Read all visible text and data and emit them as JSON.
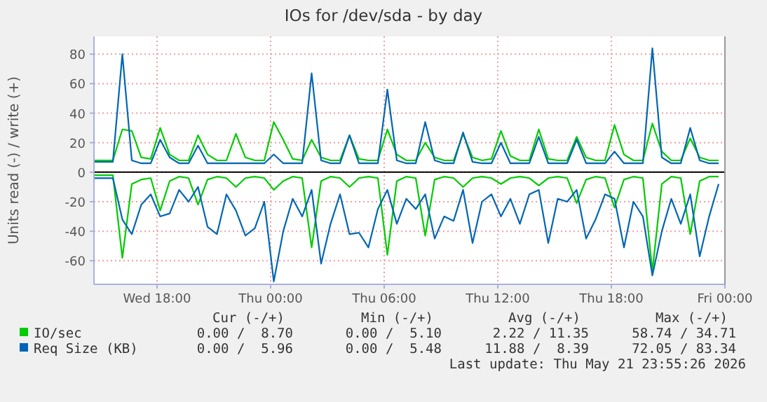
{
  "chart_data": {
    "type": "line",
    "title": "IOs for /dev/sda - by day",
    "ylabel": "Units read (-) / write (+)",
    "x": [
      "2026-05-20T14:40",
      "2026-05-20T15:10",
      "2026-05-20T15:40",
      "2026-05-20T16:10",
      "2026-05-20T16:40",
      "2026-05-20T17:10",
      "2026-05-20T17:40",
      "2026-05-20T18:10",
      "2026-05-20T18:40",
      "2026-05-20T19:10",
      "2026-05-20T19:40",
      "2026-05-20T20:10",
      "2026-05-20T20:40",
      "2026-05-20T21:10",
      "2026-05-20T21:40",
      "2026-05-20T22:10",
      "2026-05-20T22:40",
      "2026-05-20T23:10",
      "2026-05-20T23:40",
      "2026-05-21T00:10",
      "2026-05-21T00:40",
      "2026-05-21T01:10",
      "2026-05-21T01:40",
      "2026-05-21T02:10",
      "2026-05-21T02:40",
      "2026-05-21T03:10",
      "2026-05-21T03:40",
      "2026-05-21T04:10",
      "2026-05-21T04:40",
      "2026-05-21T05:10",
      "2026-05-21T05:40",
      "2026-05-21T06:10",
      "2026-05-21T06:40",
      "2026-05-21T07:10",
      "2026-05-21T07:40",
      "2026-05-21T08:10",
      "2026-05-21T08:40",
      "2026-05-21T09:10",
      "2026-05-21T09:40",
      "2026-05-21T10:10",
      "2026-05-21T10:40",
      "2026-05-21T11:10",
      "2026-05-21T11:40",
      "2026-05-21T12:10",
      "2026-05-21T12:40",
      "2026-05-21T13:10",
      "2026-05-21T13:40",
      "2026-05-21T14:10",
      "2026-05-21T14:40",
      "2026-05-21T15:10",
      "2026-05-21T15:40",
      "2026-05-21T16:10",
      "2026-05-21T16:40",
      "2026-05-21T17:10",
      "2026-05-21T17:40",
      "2026-05-21T18:10",
      "2026-05-21T18:40",
      "2026-05-21T19:10",
      "2026-05-21T19:40",
      "2026-05-21T20:10",
      "2026-05-21T20:40",
      "2026-05-21T21:10",
      "2026-05-21T21:40",
      "2026-05-21T22:10",
      "2026-05-21T22:40",
      "2026-05-21T23:10",
      "2026-05-21T23:40"
    ],
    "series": [
      {
        "color": "#00cc00",
        "values": [
          -2,
          -2,
          -2,
          -58,
          -8,
          -5,
          -4,
          -26,
          -6,
          -3,
          -4,
          -22,
          -5,
          -3,
          -4,
          -10,
          -4,
          -3,
          -4,
          -12,
          -6,
          -3,
          -4,
          -51,
          -6,
          -3,
          -4,
          -10,
          -4,
          -3,
          -4,
          -56,
          -6,
          -3,
          -4,
          -43,
          -5,
          -3,
          -4,
          -10,
          -4,
          -3,
          -4,
          -8,
          -4,
          -3,
          -4,
          -9,
          -4,
          -3,
          -4,
          -21,
          -5,
          -3,
          -4,
          -24,
          -5,
          -3,
          -4,
          -67,
          -8,
          -3,
          -4,
          -42,
          -6,
          -3,
          -3
        ]
      },
      {
        "color": "#0066b3",
        "values": [
          -4,
          -4,
          -4,
          -32,
          -42,
          -22,
          -15,
          -30,
          -28,
          -12,
          -20,
          -10,
          -37,
          -42,
          -15,
          -26,
          -43,
          -38,
          -20,
          -74,
          -40,
          -18,
          -30,
          -12,
          -62,
          -35,
          -15,
          -42,
          -41,
          -51,
          -25,
          -12,
          -35,
          -18,
          -25,
          -15,
          -45,
          -30,
          -33,
          -12,
          -48,
          -20,
          -15,
          -30,
          -18,
          -35,
          -15,
          -12,
          -48,
          -18,
          -20,
          -12,
          -45,
          -32,
          -15,
          -18,
          -51,
          -20,
          -30,
          -70,
          -40,
          -18,
          -35,
          -15,
          -57,
          -30,
          -8
        ]
      },
      {
        "name": "IO/sec",
        "color": "#00cc00",
        "values": [
          8,
          8,
          8,
          29,
          28,
          10,
          9,
          30,
          12,
          8,
          8,
          25,
          12,
          8,
          8,
          26,
          10,
          8,
          8,
          34,
          22,
          9,
          8,
          22,
          10,
          8,
          8,
          25,
          9,
          8,
          8,
          29,
          12,
          8,
          8,
          20,
          10,
          8,
          8,
          26,
          10,
          8,
          9,
          28,
          11,
          8,
          8,
          29,
          9,
          8,
          8,
          24,
          10,
          8,
          8,
          32,
          12,
          8,
          8,
          33,
          14,
          8,
          8,
          23,
          10,
          8,
          8
        ]
      },
      {
        "name": "Req Size (KB)",
        "color": "#0066b3",
        "values": [
          7,
          7,
          7,
          80,
          8,
          6,
          6,
          22,
          10,
          6,
          6,
          18,
          6,
          6,
          6,
          6,
          6,
          6,
          6,
          12,
          6,
          6,
          6,
          67,
          8,
          6,
          6,
          25,
          6,
          6,
          6,
          56,
          8,
          6,
          6,
          34,
          8,
          6,
          6,
          27,
          7,
          6,
          6,
          20,
          6,
          6,
          6,
          24,
          6,
          6,
          6,
          22,
          6,
          6,
          6,
          14,
          6,
          6,
          6,
          84,
          10,
          6,
          6,
          30,
          8,
          6,
          6
        ]
      }
    ],
    "xlim": [
      "2026-05-20T14:40",
      "2026-05-22T00:00"
    ],
    "xticks": [
      {
        "value": "2026-05-20T18:00",
        "label": "Wed 18:00"
      },
      {
        "value": "2026-05-21T00:00",
        "label": "Thu 00:00"
      },
      {
        "value": "2026-05-21T06:00",
        "label": "Thu 06:00"
      },
      {
        "value": "2026-05-21T12:00",
        "label": "Thu 12:00"
      },
      {
        "value": "2026-05-21T18:00",
        "label": "Thu 18:00"
      },
      {
        "value": "2026-05-22T00:00",
        "label": "Fri 00:00"
      }
    ],
    "ylim": [
      -76,
      92
    ],
    "yticks": [
      -60,
      -40,
      -20,
      0,
      20,
      40,
      60,
      80
    ],
    "ref_lines": [
      {
        "axis": "y",
        "value": 0,
        "color": "#000000"
      }
    ],
    "grid": true,
    "legend": "bottom",
    "annotations": [
      "Cur (-/+)",
      "Min (-/+)",
      "Avg (-/+)",
      "Max (-/+)",
      "0.00 /  8.70",
      "0.00 /  5.10",
      "2.22 / 11.35",
      "58.74 / 34.71",
      "0.00 /  5.96",
      "0.00 /  5.48",
      "11.88 /  8.39",
      "72.05 / 83.34",
      "Last update: Thu May 21 23:55:26 2026"
    ]
  }
}
